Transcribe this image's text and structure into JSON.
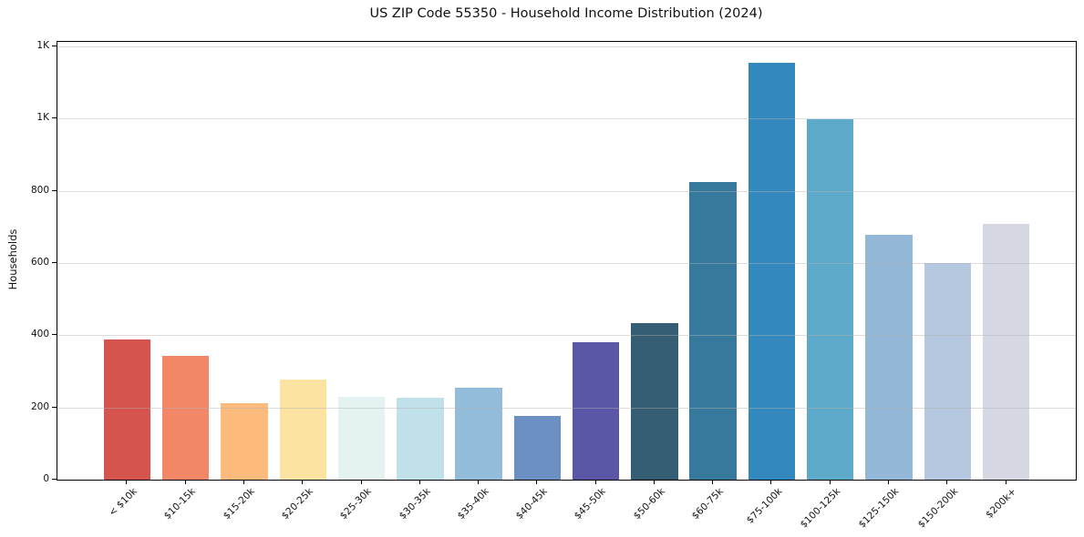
{
  "figure": {
    "title": "US ZIP Code 55350 - Household Income Distribution (2024)"
  },
  "chart_data": {
    "type": "bar",
    "title": "US ZIP Code 55350 - Household Income Distribution (2024)",
    "xlabel": "",
    "ylabel": "Households",
    "categories": [
      "< $10k",
      "$10-15k",
      "$15-20k",
      "$20-25k",
      "$25-30k",
      "$30-35k",
      "$35-40k",
      "$40-45k",
      "$45-50k",
      "$50-60k",
      "$60-75k",
      "$75-100k",
      "$100-125k",
      "$125-150k",
      "$150-200k",
      "$200k+"
    ],
    "values": [
      388,
      342,
      211,
      278,
      230,
      228,
      254,
      176,
      382,
      435,
      824,
      1155,
      998,
      678,
      600,
      709
    ],
    "bar_colors": [
      "#d5544e",
      "#f28767",
      "#fcba7d",
      "#fce3a2",
      "#e4f2f2",
      "#c1e1ea",
      "#92bcd9",
      "#6c90c4",
      "#5b57a7",
      "#355d73",
      "#36799d",
      "#3389be",
      "#5da9ca",
      "#92b7d7",
      "#b5c8df",
      "#d5d8e2"
    ],
    "ylim": [
      0,
      1213
    ],
    "yticks": {
      "values": [
        0,
        200,
        400,
        600,
        800,
        1000,
        1200
      ],
      "labels": [
        "0",
        "200",
        "400",
        "600",
        "800",
        "1K",
        "1K"
      ]
    },
    "grid": "horizontal",
    "gridlines_over_bars": true,
    "legend": "none",
    "x_tick_rotation_deg": 45,
    "spine_color": "#000000",
    "background_color": "#ffffff"
  }
}
